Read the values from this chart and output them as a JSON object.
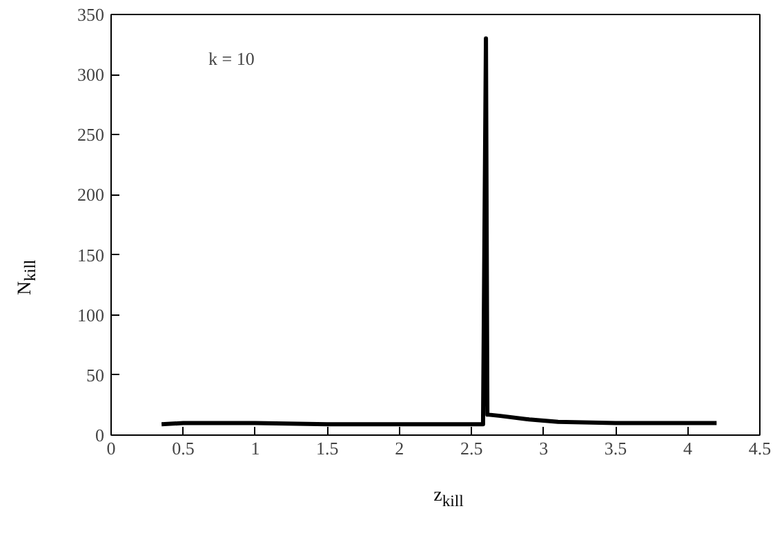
{
  "chart_data": {
    "type": "line",
    "xlabel": "z$_{kill}$",
    "ylabel": "N$_{kill}$",
    "annotations": [
      "k = 10"
    ],
    "x": [
      0.35,
      0.5,
      1.0,
      1.5,
      2.0,
      2.58,
      2.59,
      2.6,
      2.605,
      2.61,
      2.62,
      2.7,
      2.9,
      3.1,
      3.5,
      3.8,
      4.2
    ],
    "series": [
      {
        "color": "#000000",
        "values": [
          9,
          10,
          10,
          9,
          9,
          9,
          170,
          330,
          170,
          17,
          17,
          16,
          13,
          11,
          10,
          10,
          10
        ]
      }
    ],
    "xlim": [
      0,
      4.5
    ],
    "ylim": [
      0,
      350
    ],
    "xticks": [
      0,
      0.5,
      1,
      1.5,
      2,
      2.5,
      3,
      3.5,
      4,
      4.5
    ],
    "yticks": [
      0,
      50,
      100,
      150,
      200,
      250,
      300,
      350
    ],
    "grid": false,
    "marker": "none",
    "line_style": "solid"
  }
}
